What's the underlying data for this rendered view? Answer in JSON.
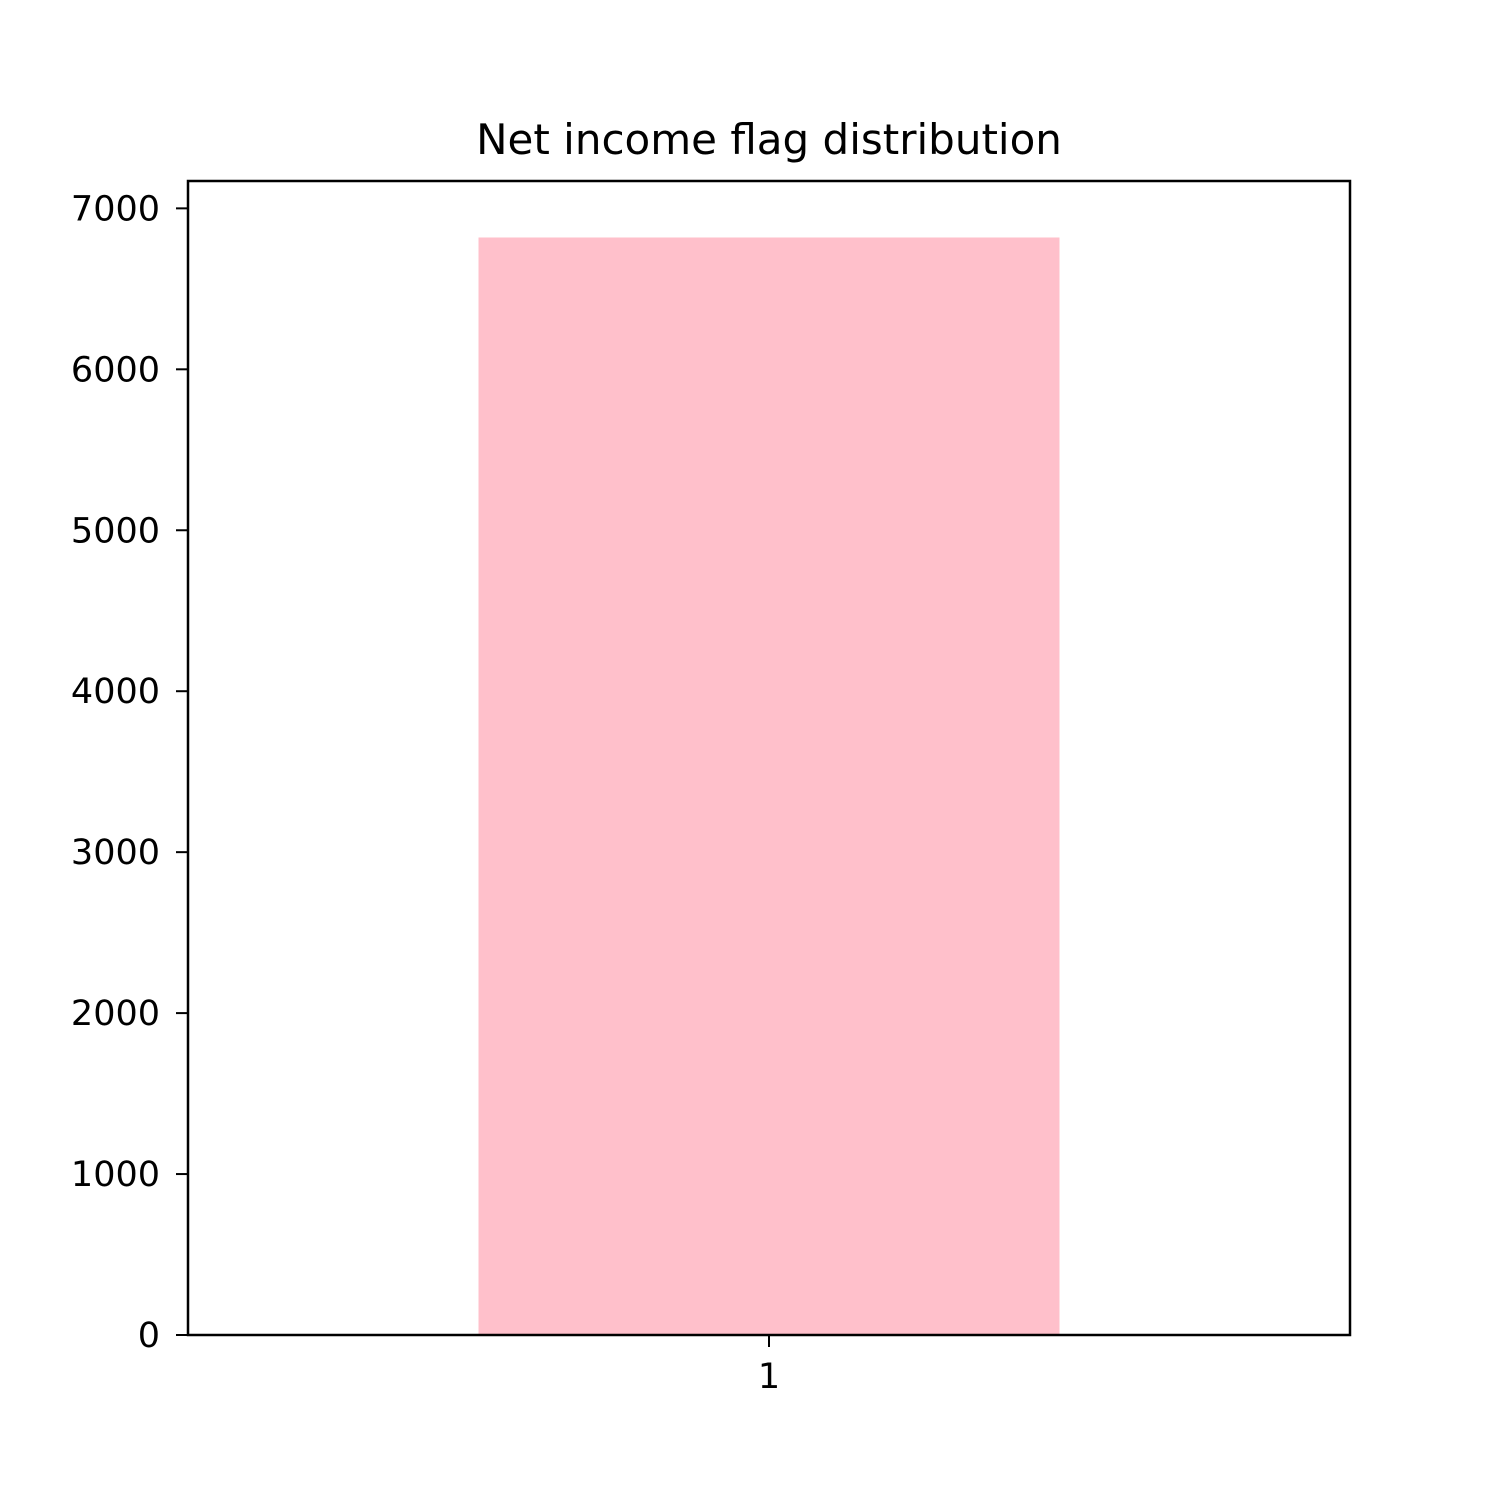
{
  "chart_data": {
    "type": "bar",
    "title": "Net income flag distribution",
    "xlabel": "",
    "ylabel": "",
    "categories": [
      "1"
    ],
    "values": [
      6819
    ],
    "ylim": [
      0,
      7170
    ],
    "yticks": [
      0,
      1000,
      2000,
      3000,
      4000,
      5000,
      6000,
      7000
    ],
    "grid": false,
    "bar_color": "#ffc0cb",
    "axis_color": "#000000"
  }
}
